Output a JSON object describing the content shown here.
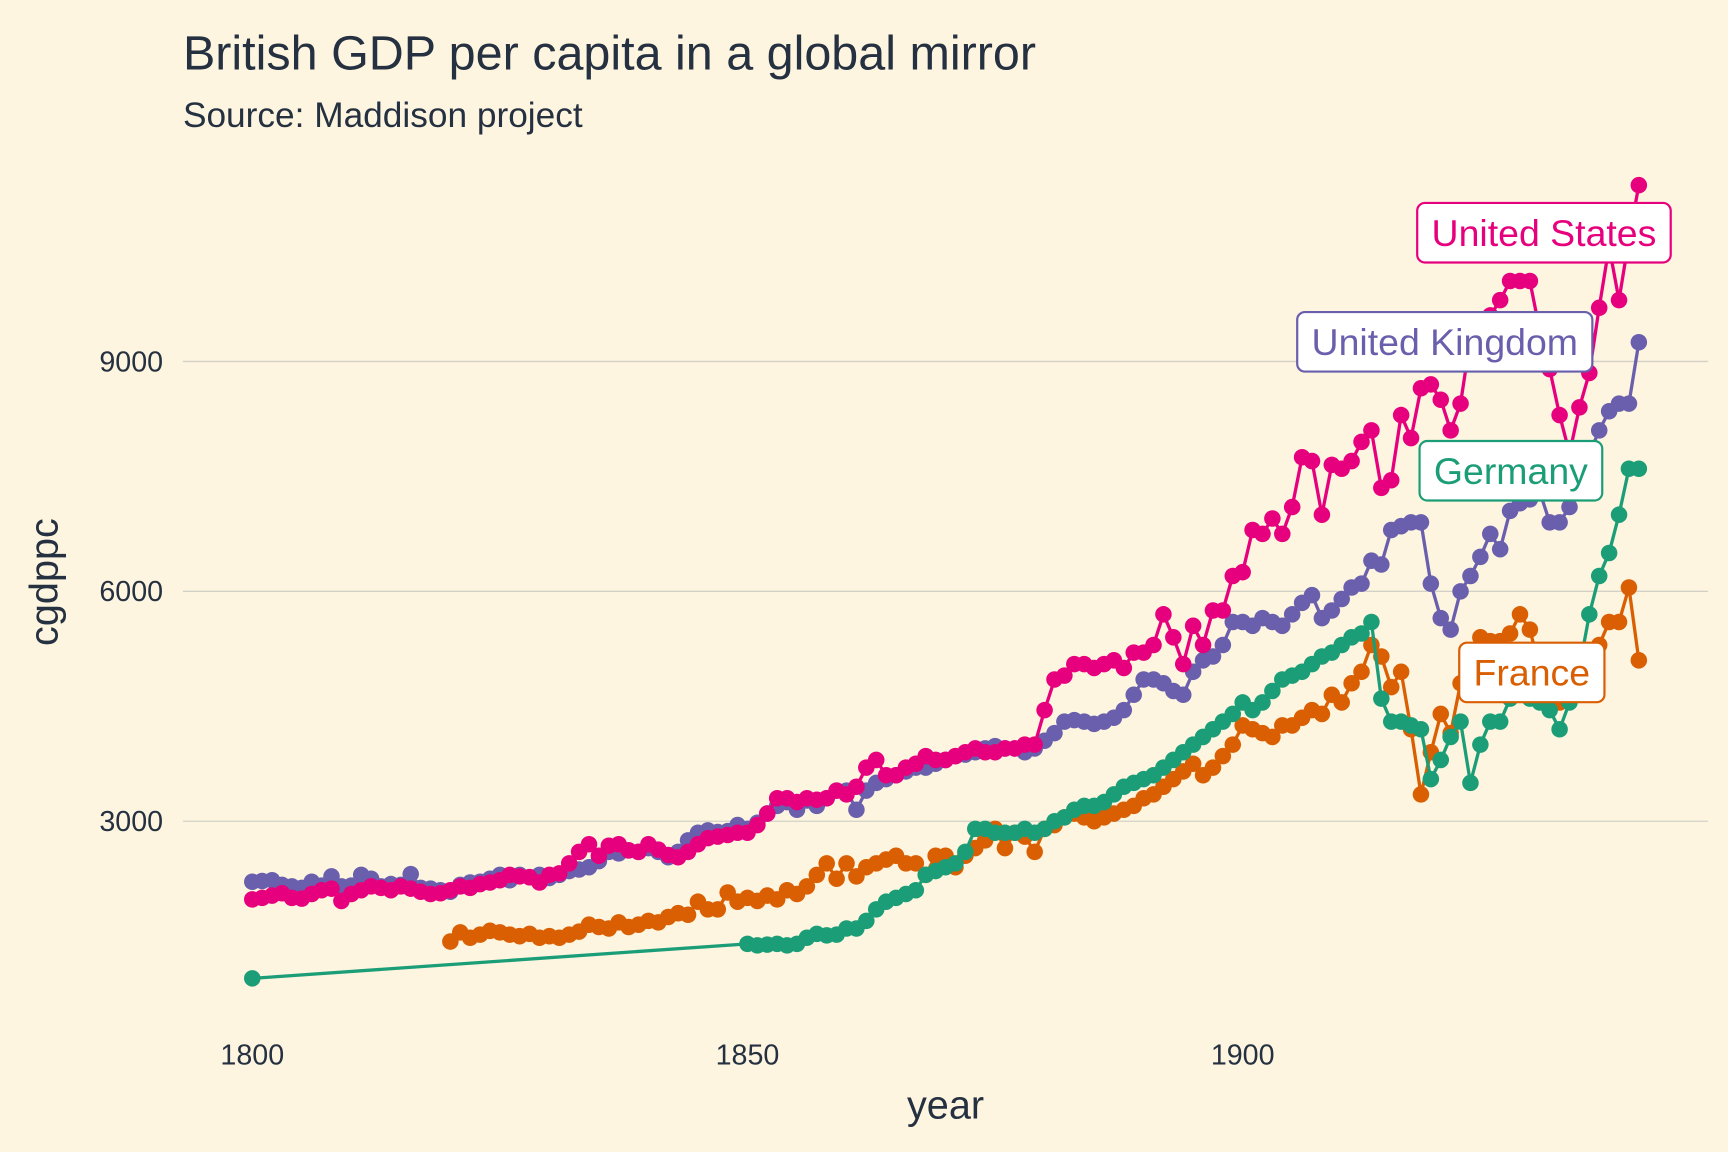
{
  "chart_data": {
    "type": "line",
    "title": "British GDP per capita in a global mirror",
    "subtitle": "Source: Maddison project",
    "x_label": "year",
    "y_label": "cgdppc",
    "xlim": [
      1793,
      1947
    ],
    "ylim": [
      340,
      11600
    ],
    "xticks": [
      1800,
      1850,
      1900
    ],
    "yticks": [
      3000,
      6000,
      9000
    ],
    "grid": true,
    "series": [
      {
        "name": "France",
        "color": "#d95f02",
        "x": [
          1820,
          1821,
          1822,
          1823,
          1824,
          1825,
          1826,
          1827,
          1828,
          1829,
          1830,
          1831,
          1832,
          1833,
          1834,
          1835,
          1836,
          1837,
          1838,
          1839,
          1840,
          1841,
          1842,
          1843,
          1844,
          1845,
          1846,
          1847,
          1848,
          1849,
          1850,
          1851,
          1852,
          1853,
          1854,
          1855,
          1856,
          1857,
          1858,
          1859,
          1860,
          1861,
          1862,
          1863,
          1864,
          1865,
          1866,
          1867,
          1868,
          1869,
          1870,
          1871,
          1872,
          1873,
          1874,
          1875,
          1876,
          1877,
          1878,
          1879,
          1880,
          1881,
          1882,
          1883,
          1884,
          1885,
          1886,
          1887,
          1888,
          1889,
          1890,
          1891,
          1892,
          1893,
          1894,
          1895,
          1896,
          1897,
          1898,
          1899,
          1900,
          1901,
          1902,
          1903,
          1904,
          1905,
          1906,
          1907,
          1908,
          1909,
          1910,
          1911,
          1912,
          1913,
          1914,
          1915,
          1916,
          1917,
          1918,
          1919,
          1920,
          1921,
          1922,
          1923,
          1924,
          1925,
          1926,
          1927,
          1928,
          1929,
          1930,
          1931,
          1932,
          1933,
          1934,
          1935,
          1936,
          1937,
          1938,
          1939,
          1940
        ],
        "values": [
          1430,
          1550,
          1480,
          1520,
          1570,
          1550,
          1520,
          1500,
          1530,
          1480,
          1500,
          1480,
          1520,
          1560,
          1650,
          1620,
          1600,
          1680,
          1620,
          1650,
          1700,
          1680,
          1750,
          1800,
          1780,
          1950,
          1850,
          1850,
          2070,
          1950,
          2000,
          1960,
          2030,
          1980,
          2100,
          2050,
          2150,
          2300,
          2450,
          2250,
          2450,
          2280,
          2400,
          2450,
          2500,
          2550,
          2450,
          2450,
          2300,
          2550,
          2550,
          2400,
          2550,
          2650,
          2750,
          2900,
          2650,
          2850,
          2800,
          2600,
          2900,
          2950,
          3050,
          3100,
          3050,
          3000,
          3050,
          3100,
          3150,
          3200,
          3300,
          3350,
          3450,
          3550,
          3650,
          3750,
          3600,
          3700,
          3850,
          4000,
          4250,
          4200,
          4150,
          4100,
          4250,
          4250,
          4350,
          4450,
          4400,
          4650,
          4550,
          4800,
          4950,
          5300,
          5150,
          4750,
          4950,
          4200,
          3350,
          3900,
          4400,
          4150,
          4800,
          5100,
          5400,
          5350,
          5350,
          5450,
          5700,
          5500,
          5000,
          4600,
          4550,
          4700,
          4800,
          5000,
          5300,
          5600,
          5600,
          6050,
          5100
        ]
      },
      {
        "name": "Germany",
        "color": "#1b9e77",
        "x": [
          1800,
          1850,
          1851,
          1852,
          1853,
          1854,
          1855,
          1856,
          1857,
          1858,
          1859,
          1860,
          1861,
          1862,
          1863,
          1864,
          1865,
          1866,
          1867,
          1868,
          1869,
          1870,
          1871,
          1872,
          1873,
          1874,
          1875,
          1876,
          1877,
          1878,
          1879,
          1880,
          1881,
          1882,
          1883,
          1884,
          1885,
          1886,
          1887,
          1888,
          1889,
          1890,
          1891,
          1892,
          1893,
          1894,
          1895,
          1896,
          1897,
          1898,
          1899,
          1900,
          1901,
          1902,
          1903,
          1904,
          1905,
          1906,
          1907,
          1908,
          1909,
          1910,
          1911,
          1912,
          1913,
          1914,
          1915,
          1916,
          1917,
          1918,
          1919,
          1920,
          1921,
          1922,
          1923,
          1924,
          1925,
          1926,
          1927,
          1928,
          1929,
          1930,
          1931,
          1932,
          1933,
          1934,
          1935,
          1936,
          1937,
          1938,
          1939,
          1940
        ],
        "values": [
          950,
          1400,
          1380,
          1390,
          1400,
          1380,
          1400,
          1480,
          1530,
          1510,
          1520,
          1600,
          1600,
          1700,
          1850,
          1950,
          2000,
          2050,
          2100,
          2300,
          2350,
          2400,
          2450,
          2600,
          2900,
          2900,
          2850,
          2850,
          2850,
          2900,
          2850,
          2900,
          3000,
          3050,
          3150,
          3200,
          3200,
          3250,
          3350,
          3450,
          3500,
          3550,
          3600,
          3700,
          3800,
          3900,
          4000,
          4100,
          4200,
          4300,
          4400,
          4550,
          4450,
          4550,
          4700,
          4850,
          4900,
          4950,
          5050,
          5150,
          5200,
          5300,
          5400,
          5450,
          5600,
          4600,
          4300,
          4300,
          4250,
          4200,
          3550,
          3800,
          4100,
          4300,
          3500,
          4000,
          4300,
          4300,
          4600,
          4700,
          4600,
          4550,
          4450,
          4200,
          4550,
          5000,
          5700,
          6200,
          6500,
          7000,
          7600,
          7600
        ]
      },
      {
        "name": "United Kingdom",
        "color": "#6a5fac",
        "x": [
          1800,
          1801,
          1802,
          1803,
          1804,
          1805,
          1806,
          1807,
          1808,
          1809,
          1810,
          1811,
          1812,
          1813,
          1814,
          1815,
          1816,
          1817,
          1818,
          1819,
          1820,
          1821,
          1822,
          1823,
          1824,
          1825,
          1826,
          1827,
          1828,
          1829,
          1830,
          1831,
          1832,
          1833,
          1834,
          1835,
          1836,
          1837,
          1838,
          1839,
          1840,
          1841,
          1842,
          1843,
          1844,
          1845,
          1846,
          1847,
          1848,
          1849,
          1850,
          1851,
          1852,
          1853,
          1854,
          1855,
          1856,
          1857,
          1858,
          1859,
          1860,
          1861,
          1862,
          1863,
          1864,
          1865,
          1866,
          1867,
          1868,
          1869,
          1870,
          1871,
          1872,
          1873,
          1874,
          1875,
          1876,
          1877,
          1878,
          1879,
          1880,
          1881,
          1882,
          1883,
          1884,
          1885,
          1886,
          1887,
          1888,
          1889,
          1890,
          1891,
          1892,
          1893,
          1894,
          1895,
          1896,
          1897,
          1898,
          1899,
          1900,
          1901,
          1902,
          1903,
          1904,
          1905,
          1906,
          1907,
          1908,
          1909,
          1910,
          1911,
          1912,
          1913,
          1914,
          1915,
          1916,
          1917,
          1918,
          1919,
          1920,
          1921,
          1922,
          1923,
          1924,
          1925,
          1926,
          1927,
          1928,
          1929,
          1930,
          1931,
          1932,
          1933,
          1934,
          1935,
          1936,
          1937,
          1938,
          1939,
          1940
        ],
        "values": [
          2210,
          2220,
          2230,
          2170,
          2150,
          2130,
          2210,
          2160,
          2280,
          2150,
          2160,
          2300,
          2250,
          2150,
          2180,
          2170,
          2310,
          2130,
          2120,
          2100,
          2080,
          2170,
          2200,
          2210,
          2250,
          2300,
          2230,
          2300,
          2270,
          2300,
          2260,
          2300,
          2350,
          2370,
          2400,
          2480,
          2600,
          2580,
          2620,
          2600,
          2650,
          2600,
          2530,
          2600,
          2750,
          2850,
          2880,
          2860,
          2870,
          2950,
          2900,
          2980,
          3100,
          3200,
          3250,
          3150,
          3270,
          3200,
          3300,
          3400,
          3400,
          3150,
          3400,
          3500,
          3550,
          3600,
          3650,
          3700,
          3700,
          3750,
          3800,
          3850,
          3870,
          3900,
          3950,
          3980,
          3950,
          3950,
          3900,
          3950,
          4050,
          4150,
          4300,
          4320,
          4300,
          4270,
          4300,
          4350,
          4450,
          4650,
          4850,
          4850,
          4800,
          4700,
          4650,
          4950,
          5100,
          5150,
          5300,
          5600,
          5600,
          5550,
          5650,
          5600,
          5550,
          5700,
          5850,
          5950,
          5650,
          5750,
          5900,
          6050,
          6100,
          6400,
          6350,
          6800,
          6850,
          6900,
          6900,
          6100,
          5650,
          5500,
          6000,
          6200,
          6450,
          6750,
          6550,
          7050,
          7150,
          7200,
          7300,
          6900,
          6900,
          7100,
          7500,
          7800,
          8100,
          8350,
          8450,
          8450,
          9250
        ]
      },
      {
        "name": "United States",
        "color": "#e7007d",
        "x": [
          1800,
          1801,
          1802,
          1803,
          1804,
          1805,
          1806,
          1807,
          1808,
          1809,
          1810,
          1811,
          1812,
          1813,
          1814,
          1815,
          1816,
          1817,
          1818,
          1819,
          1820,
          1821,
          1822,
          1823,
          1824,
          1825,
          1826,
          1827,
          1828,
          1829,
          1830,
          1831,
          1832,
          1833,
          1834,
          1835,
          1836,
          1837,
          1838,
          1839,
          1840,
          1841,
          1842,
          1843,
          1844,
          1845,
          1846,
          1847,
          1848,
          1849,
          1850,
          1851,
          1852,
          1853,
          1854,
          1855,
          1856,
          1857,
          1858,
          1859,
          1860,
          1861,
          1862,
          1863,
          1864,
          1865,
          1866,
          1867,
          1868,
          1869,
          1870,
          1871,
          1872,
          1873,
          1874,
          1875,
          1876,
          1877,
          1878,
          1879,
          1880,
          1881,
          1882,
          1883,
          1884,
          1885,
          1886,
          1887,
          1888,
          1889,
          1890,
          1891,
          1892,
          1893,
          1894,
          1895,
          1896,
          1897,
          1898,
          1899,
          1900,
          1901,
          1902,
          1903,
          1904,
          1905,
          1906,
          1907,
          1908,
          1909,
          1910,
          1911,
          1912,
          1913,
          1914,
          1915,
          1916,
          1917,
          1918,
          1919,
          1920,
          1921,
          1922,
          1923,
          1924,
          1925,
          1926,
          1927,
          1928,
          1929,
          1930,
          1931,
          1932,
          1933,
          1934,
          1935,
          1936,
          1937,
          1938,
          1939,
          1940
        ],
        "values": [
          1980,
          2000,
          2030,
          2060,
          2000,
          1990,
          2050,
          2100,
          2120,
          1960,
          2050,
          2100,
          2150,
          2130,
          2100,
          2150,
          2120,
          2080,
          2050,
          2060,
          2100,
          2150,
          2130,
          2180,
          2200,
          2230,
          2300,
          2280,
          2270,
          2200,
          2300,
          2320,
          2450,
          2600,
          2700,
          2550,
          2680,
          2700,
          2620,
          2600,
          2700,
          2630,
          2560,
          2530,
          2600,
          2700,
          2780,
          2800,
          2820,
          2850,
          2850,
          2950,
          3100,
          3300,
          3300,
          3250,
          3300,
          3280,
          3300,
          3400,
          3350,
          3450,
          3700,
          3800,
          3600,
          3600,
          3700,
          3750,
          3850,
          3800,
          3800,
          3850,
          3900,
          3950,
          3900,
          3900,
          3950,
          3950,
          4000,
          4000,
          4450,
          4850,
          4900,
          5050,
          5050,
          5000,
          5050,
          5100,
          5000,
          5200,
          5200,
          5300,
          5700,
          5400,
          5050,
          5550,
          5300,
          5750,
          5750,
          6200,
          6250,
          6800,
          6750,
          6950,
          6750,
          7100,
          7750,
          7700,
          7000,
          7650,
          7600,
          7700,
          7950,
          8100,
          7350,
          7450,
          8300,
          8000,
          8650,
          8700,
          8500,
          8100,
          8450,
          9300,
          9350,
          9600,
          9800,
          10050,
          10050,
          10050,
          9400,
          8900,
          8300,
          7800,
          8400,
          8850,
          9700,
          10500,
          9800,
          10600,
          11300
        ]
      }
    ]
  }
}
